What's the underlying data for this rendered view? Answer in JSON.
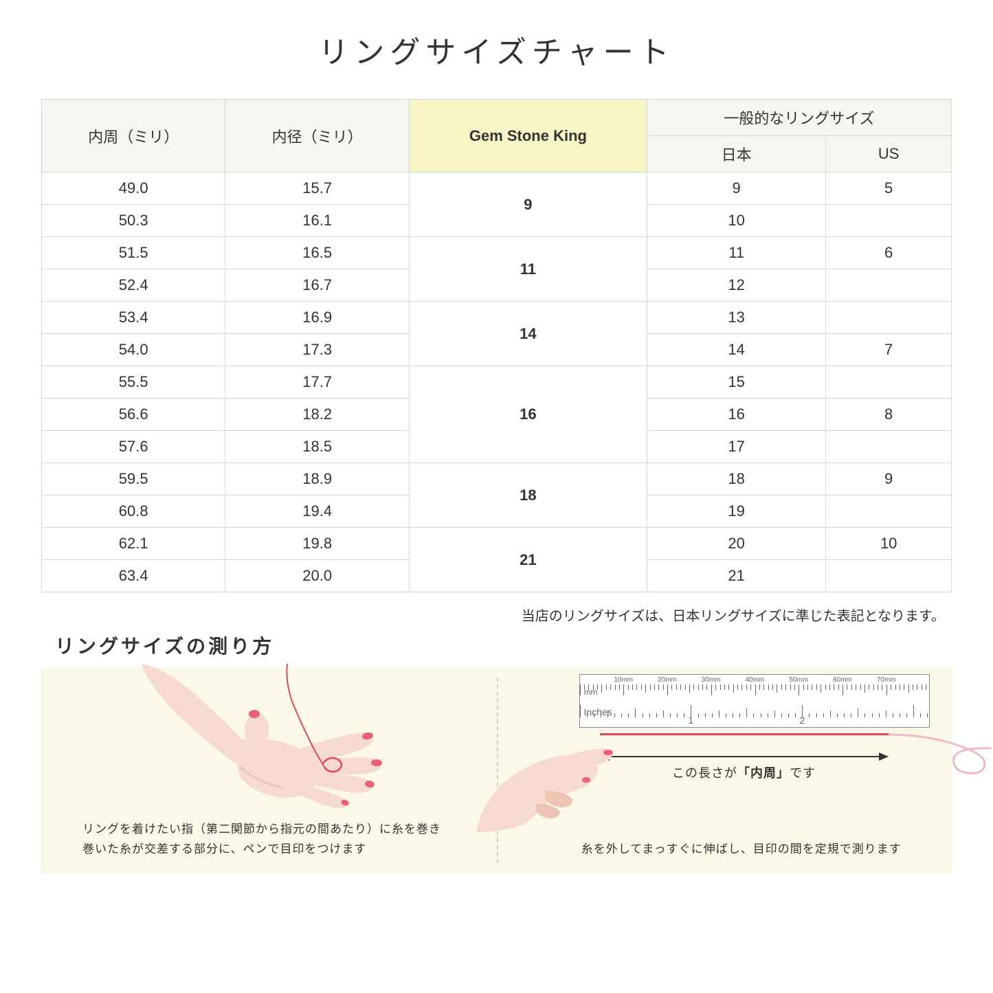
{
  "title": "リングサイズチャート",
  "headers": {
    "circumference": "内周（ミリ）",
    "diameter": "内径（ミリ）",
    "gsk": "Gem Stone King",
    "general": "一般的なリングサイズ",
    "japan": "日本",
    "us": "US"
  },
  "groups": [
    {
      "gsk": "9",
      "rows": [
        {
          "c": "49.0",
          "d": "15.7",
          "jp": "9",
          "us": "5"
        },
        {
          "c": "50.3",
          "d": "16.1",
          "jp": "10",
          "us": ""
        }
      ]
    },
    {
      "gsk": "11",
      "rows": [
        {
          "c": "51.5",
          "d": "16.5",
          "jp": "11",
          "us": "6"
        },
        {
          "c": "52.4",
          "d": "16.7",
          "jp": "12",
          "us": ""
        }
      ]
    },
    {
      "gsk": "14",
      "rows": [
        {
          "c": "53.4",
          "d": "16.9",
          "jp": "13",
          "us": ""
        },
        {
          "c": "54.0",
          "d": "17.3",
          "jp": "14",
          "us": "7"
        }
      ]
    },
    {
      "gsk": "16",
      "rows": [
        {
          "c": "55.5",
          "d": "17.7",
          "jp": "15",
          "us": ""
        },
        {
          "c": "56.6",
          "d": "18.2",
          "jp": "16",
          "us": "8"
        },
        {
          "c": "57.6",
          "d": "18.5",
          "jp": "17",
          "us": ""
        }
      ]
    },
    {
      "gsk": "18",
      "rows": [
        {
          "c": "59.5",
          "d": "18.9",
          "jp": "18",
          "us": "9"
        },
        {
          "c": "60.8",
          "d": "19.4",
          "jp": "19",
          "us": ""
        }
      ]
    },
    {
      "gsk": "21",
      "rows": [
        {
          "c": "62.1",
          "d": "19.8",
          "jp": "20",
          "us": "10"
        },
        {
          "c": "63.4",
          "d": "20.0",
          "jp": "21",
          "us": ""
        }
      ]
    }
  ],
  "note": "当店のリングサイズは、日本リングサイズに準じた表記となります。",
  "measure_title": "リングサイズの測り方",
  "left_caption": "リングを着けたい指（第二関節から指元の間あたり）に糸を巻き\n巻いた糸が交差する部分に、ペンで目印をつけます",
  "right_caption": "糸を外してまっすぐに伸ばし、目印の間を定規で測ります",
  "ruler": {
    "mm_labels": [
      "10mm",
      "20mm",
      "30mm",
      "40mm",
      "50mm",
      "60mm",
      "70mm"
    ],
    "unit_mm": "mm",
    "unit_in": "Inches",
    "in_labels": [
      "1",
      "2"
    ]
  },
  "arrow_label_pre": "この長さが",
  "arrow_label_bold": "「内周」",
  "arrow_label_post": "です",
  "colors": {
    "header_bg": "#f6f6f0",
    "highlight_bg": "#f7f5c5",
    "border": "#d8d8d8",
    "panel_bg": "#fbf8e8",
    "skin": "#f6d9cf",
    "skin_dark": "#eec4b5",
    "nail": "#e8607a",
    "thread": "#d94a5f"
  }
}
